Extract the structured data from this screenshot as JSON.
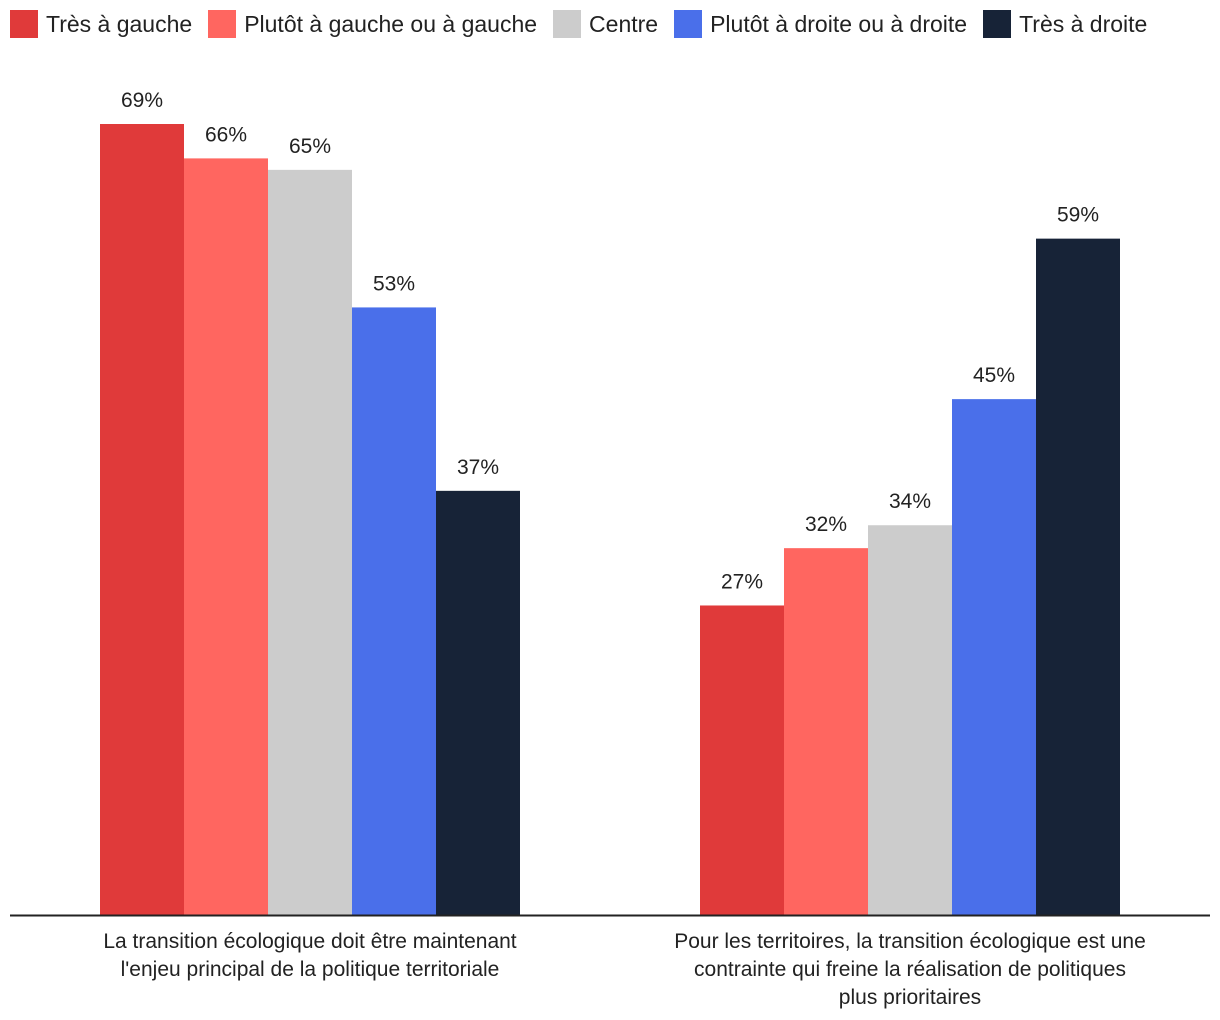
{
  "chart_data": {
    "type": "bar",
    "title": "",
    "xlabel": "",
    "ylabel": "",
    "ylim": [
      0,
      69
    ],
    "grid": false,
    "legend_position": "top-left",
    "categories": [
      "La transition écologique doit être maintenant l'enjeu principal de la politique territoriale",
      "Pour les territoires, la transition écologique est une contrainte qui freine la réalisation de politiques plus prioritaires"
    ],
    "category_lines": [
      [
        "La transition écologique doit être maintenant",
        "l'enjeu principal de la politique territoriale"
      ],
      [
        "Pour les territoires, la transition écologique est une",
        "contrainte qui freine la réalisation de politiques",
        "plus prioritaires"
      ]
    ],
    "value_suffix": "%",
    "series": [
      {
        "name": "Très à gauche",
        "color": "#e03a3a",
        "values": [
          69,
          27
        ]
      },
      {
        "name": "Plutôt à gauche ou à gauche",
        "color": "#ff6660",
        "values": [
          66,
          32
        ]
      },
      {
        "name": "Centre",
        "color": "#cccccc",
        "values": [
          65,
          34
        ]
      },
      {
        "name": "Plutôt à droite ou à droite",
        "color": "#4a6fea",
        "values": [
          53,
          45
        ]
      },
      {
        "name": "Très à droite",
        "color": "#172337",
        "values": [
          37,
          59
        ]
      }
    ]
  }
}
